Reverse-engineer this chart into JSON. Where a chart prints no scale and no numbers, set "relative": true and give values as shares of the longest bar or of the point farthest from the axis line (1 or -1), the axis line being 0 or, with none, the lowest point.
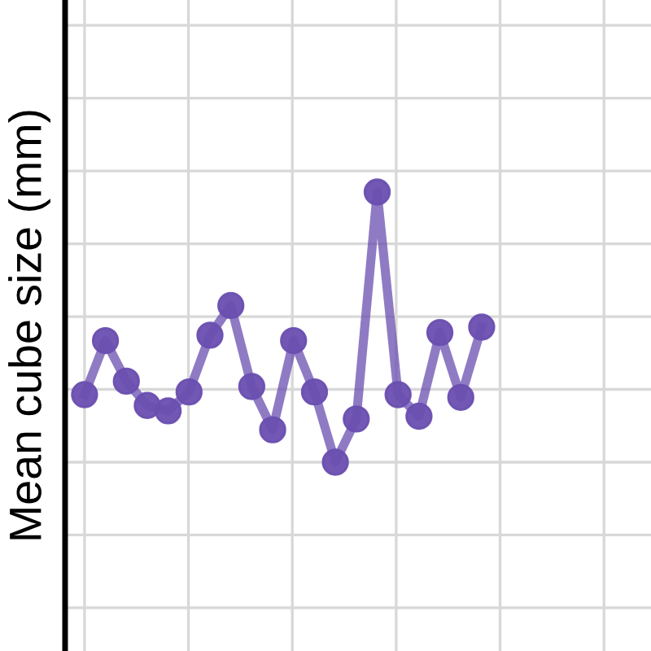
{
  "chart_data": {
    "type": "line",
    "ylabel": "Mean cube size (mm)",
    "relative": true,
    "grid": true,
    "marker": "circle",
    "line_style": "solid",
    "tick_labels": false,
    "categories": [
      null,
      null,
      null,
      null,
      null,
      null,
      null,
      null,
      null,
      null,
      null,
      null,
      null,
      null,
      null,
      null,
      null,
      null,
      null,
      null
    ],
    "series": [
      {
        "color": "#6a4fb0",
        "values": [
          0.25,
          0.45,
          0.3,
          0.21,
          0.19,
          0.26,
          0.47,
          0.58,
          0.28,
          0.12,
          0.45,
          0.26,
          0,
          0.16,
          1,
          0.25,
          0.17,
          0.48,
          0.24,
          0.5
        ]
      }
    ]
  }
}
